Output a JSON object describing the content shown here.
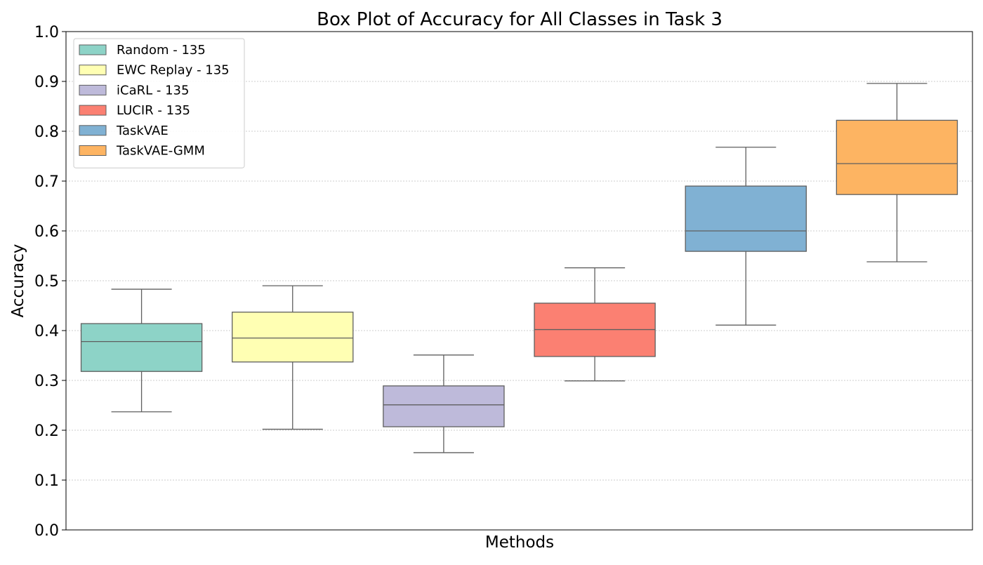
{
  "chart_data": {
    "type": "box",
    "title": "Box Plot of Accuracy for All Classes in Task 3",
    "xlabel": "Methods",
    "ylabel": "Accuracy",
    "ylim": [
      0.0,
      1.0
    ],
    "yticks": [
      "0.0",
      "0.1",
      "0.2",
      "0.3",
      "0.4",
      "0.5",
      "0.6",
      "0.7",
      "0.8",
      "0.9",
      "1.0"
    ],
    "ytick_values": [
      0.0,
      0.1,
      0.2,
      0.3,
      0.4,
      0.5,
      0.6,
      0.7,
      0.8,
      0.9,
      1.0
    ],
    "grid": "horizontal-dotted",
    "legend_position": "top-left",
    "series": [
      {
        "name": "Random - 135",
        "color": "#8dd3c7",
        "whisker_low": 0.237,
        "q1": 0.318,
        "median": 0.378,
        "q3": 0.414,
        "whisker_high": 0.483
      },
      {
        "name": "EWC Replay - 135",
        "color": "#ffffb3",
        "whisker_low": 0.202,
        "q1": 0.337,
        "median": 0.385,
        "q3": 0.437,
        "whisker_high": 0.49
      },
      {
        "name": "iCaRL - 135",
        "color": "#bebada",
        "whisker_low": 0.155,
        "q1": 0.207,
        "median": 0.251,
        "q3": 0.289,
        "whisker_high": 0.351
      },
      {
        "name": "LUCIR - 135",
        "color": "#fb8072",
        "whisker_low": 0.299,
        "q1": 0.348,
        "median": 0.402,
        "q3": 0.455,
        "whisker_high": 0.526
      },
      {
        "name": "TaskVAE",
        "color": "#80b1d3",
        "whisker_low": 0.411,
        "q1": 0.559,
        "median": 0.6,
        "q3": 0.69,
        "whisker_high": 0.768
      },
      {
        "name": "TaskVAE-GMM",
        "color": "#fdb462",
        "whisker_low": 0.538,
        "q1": 0.673,
        "median": 0.735,
        "q3": 0.822,
        "whisker_high": 0.896
      }
    ]
  }
}
